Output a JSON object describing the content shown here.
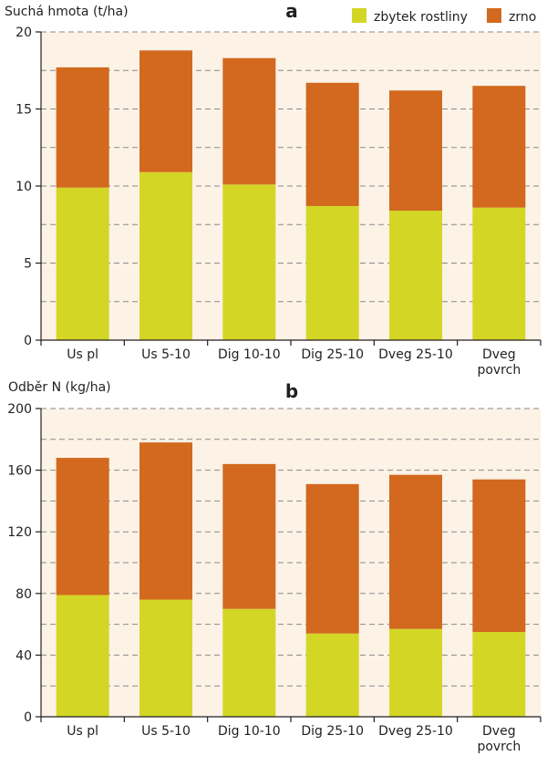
{
  "colors": {
    "residue": "#d4d626",
    "grain": "#d2691e",
    "plot_bg": "#fcf2e6",
    "grid": "#8a8a8a",
    "axis": "#231f20"
  },
  "legend": {
    "residue": "zbytek rostliny",
    "grain": "zrno"
  },
  "chart_data": [
    {
      "type": "bar",
      "stacked": true,
      "panel": "a",
      "title": "a",
      "ylabel": "Suchá hmota (t/ha)",
      "xlabel": "",
      "ylim": [
        0,
        20
      ],
      "yticks": [
        0,
        5,
        10,
        15,
        20
      ],
      "grid_step": 2.5,
      "categories": [
        [
          "Us pl"
        ],
        [
          "Us 5-10"
        ],
        [
          "Dig 10-10"
        ],
        [
          "Dig 25-10"
        ],
        [
          "Dveg 25-10"
        ],
        [
          "Dveg",
          "povrch"
        ]
      ],
      "series": [
        {
          "name": "zbytek rostliny",
          "key": "residue",
          "values": [
            9.9,
            10.9,
            10.1,
            8.7,
            8.4,
            8.6
          ]
        },
        {
          "name": "zrno",
          "key": "grain",
          "values": [
            7.8,
            7.9,
            8.2,
            8.0,
            7.8,
            7.9
          ]
        }
      ]
    },
    {
      "type": "bar",
      "stacked": true,
      "panel": "b",
      "title": "b",
      "ylabel": "Odběr N (kg/ha)",
      "xlabel": "",
      "ylim": [
        0,
        200
      ],
      "yticks": [
        0,
        40,
        80,
        120,
        160,
        200
      ],
      "grid_step": 20,
      "categories": [
        [
          "Us pl"
        ],
        [
          "Us 5-10"
        ],
        [
          "Dig 10-10"
        ],
        [
          "Dig 25-10"
        ],
        [
          "Dveg 25-10"
        ],
        [
          "Dveg",
          "povrch"
        ]
      ],
      "series": [
        {
          "name": "zbytek rostliny",
          "key": "residue",
          "values": [
            79,
            76,
            70,
            54,
            57,
            55
          ]
        },
        {
          "name": "zrno",
          "key": "grain",
          "values": [
            89,
            102,
            94,
            97,
            100,
            99
          ]
        }
      ]
    }
  ]
}
